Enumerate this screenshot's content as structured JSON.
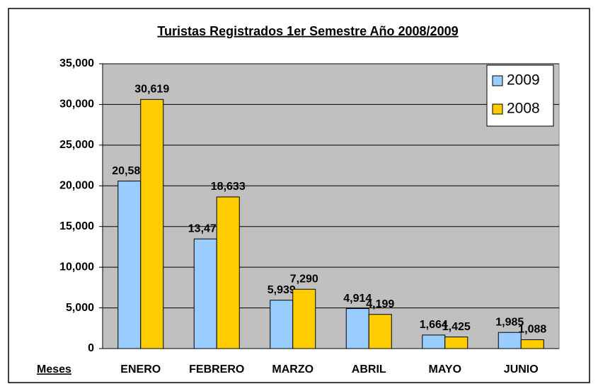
{
  "chart_data": {
    "type": "bar",
    "title": "Turistas Registrados 1er Semestre Año 2008/2009",
    "x_label": "Meses",
    "categories": [
      "ENERO",
      "FEBRERO",
      "MARZO",
      "ABRIL",
      "MAYO",
      "JUNIO"
    ],
    "series": [
      {
        "name": "2009",
        "color": "#99ccff",
        "values": [
          20588,
          13475,
          5939,
          4914,
          1664,
          1985
        ],
        "value_labels": [
          "20,588",
          "13,475",
          "5,939",
          "4,914",
          "1,664",
          "1,985"
        ]
      },
      {
        "name": "2008",
        "color": "#ffcc00",
        "values": [
          30619,
          18633,
          7290,
          4199,
          1425,
          1088
        ],
        "value_labels": [
          "30,619",
          "18,633",
          "7,290",
          "4,199",
          "1,425",
          "1,088"
        ]
      }
    ],
    "ylim": [
      0,
      35000
    ],
    "yticks": [
      0,
      {
        "value": 5000,
        "label": "5,000"
      },
      {
        "value": 10000,
        "label": "10,000"
      },
      {
        "value": 15000,
        "label": "15,000"
      },
      {
        "value": 20000,
        "label": "20,000"
      },
      {
        "value": 25000,
        "label": "25,000"
      },
      {
        "value": 30000,
        "label": "30,000"
      },
      {
        "value": 35000,
        "label": "35,000"
      }
    ],
    "grid": true,
    "legend": "top-right",
    "plot_background": "#c0c0c0"
  }
}
